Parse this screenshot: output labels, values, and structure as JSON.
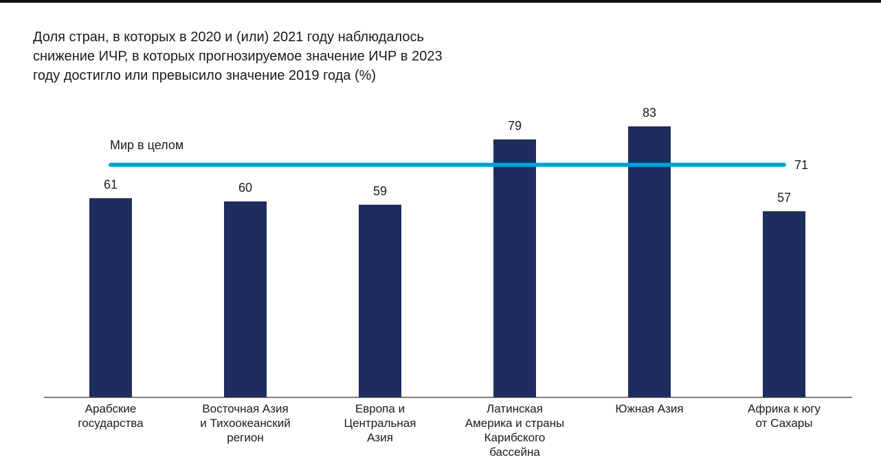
{
  "chart_data": {
    "type": "bar",
    "title_lines": [
      "Доля стран, в которых в 2020 и (или) 2021 году наблюдалось",
      "снижение ИЧР, в которых прогнозируемое значение ИЧР в 2023",
      "году достигло или превысило значение 2019 года (%)"
    ],
    "categories": [
      [
        "Арабские",
        "государства"
      ],
      [
        "Восточная Азия",
        "и Тихоокеанский",
        "регион"
      ],
      [
        "Европа и",
        "Центральная",
        "Азия"
      ],
      [
        "Латинская",
        "Америка и страны",
        "Карибского",
        "бассейна"
      ],
      [
        "Южная Азия"
      ],
      [
        "Африка к югу",
        "от Сахары"
      ]
    ],
    "values": [
      61,
      60,
      59,
      79,
      83,
      57
    ],
    "value_labels": [
      "61",
      "60",
      "59",
      "79",
      "83",
      "57"
    ],
    "reference_line": {
      "label": "Мир в целом",
      "value": 71,
      "value_label": "71"
    },
    "ylim": [
      0,
      100
    ],
    "grid": false,
    "legend": "none",
    "colors": {
      "bar": "#1e2d5e",
      "reference_line": "#00a1d9",
      "axis": "#333333"
    }
  }
}
